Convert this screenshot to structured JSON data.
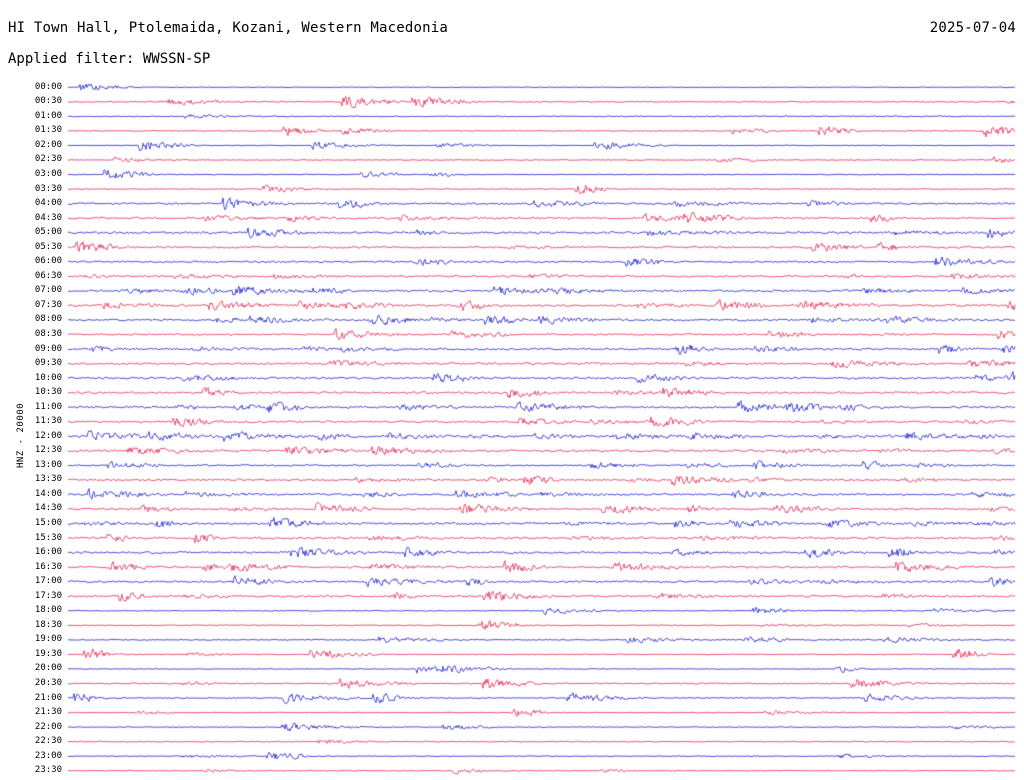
{
  "header": {
    "station_title": "HI Town Hall, Ptolemaida, Kozani, Western Macedonia",
    "date": "2025-07-04",
    "filter_line": "Applied filter: WWSSN-SP"
  },
  "axis": {
    "vertical_label": "HNZ - 20000"
  },
  "chart_data": {
    "type": "line",
    "subtype": "seismogram-helicorder",
    "title": "HI Town Hall, Ptolemaida, Kozani, Western Macedonia",
    "date": "2025-07-04",
    "filter": "WWSSN-SP",
    "channel": "HNZ",
    "amplitude_scale": "HNZ - 20000",
    "minutes_per_row": 30,
    "row_times": [
      "00:00",
      "00:30",
      "01:00",
      "01:30",
      "02:00",
      "02:30",
      "03:00",
      "03:30",
      "04:00",
      "04:30",
      "05:00",
      "05:30",
      "06:00",
      "06:30",
      "07:00",
      "07:30",
      "08:00",
      "08:30",
      "09:00",
      "09:30",
      "10:00",
      "10:30",
      "11:00",
      "11:30",
      "12:00",
      "12:30",
      "13:00",
      "13:30",
      "14:00",
      "14:30",
      "15:00",
      "15:30",
      "16:00",
      "16:30",
      "17:00",
      "17:30",
      "18:00",
      "18:30",
      "19:00",
      "19:30",
      "20:00",
      "20:30",
      "21:00",
      "21:30",
      "22:00",
      "22:30",
      "23:00",
      "23:30"
    ],
    "colors": {
      "even_row": "#0000cc",
      "odd_row": "#e30b3c"
    },
    "legend": "off",
    "grid": "off",
    "description": "48 alternating blue/red horizontal traces of continuous seismic noise with intermittent event bursts, one 30-minute segment per row; daytime rows (approx 04:00-17:30) show higher-amplitude activity than night rows."
  }
}
